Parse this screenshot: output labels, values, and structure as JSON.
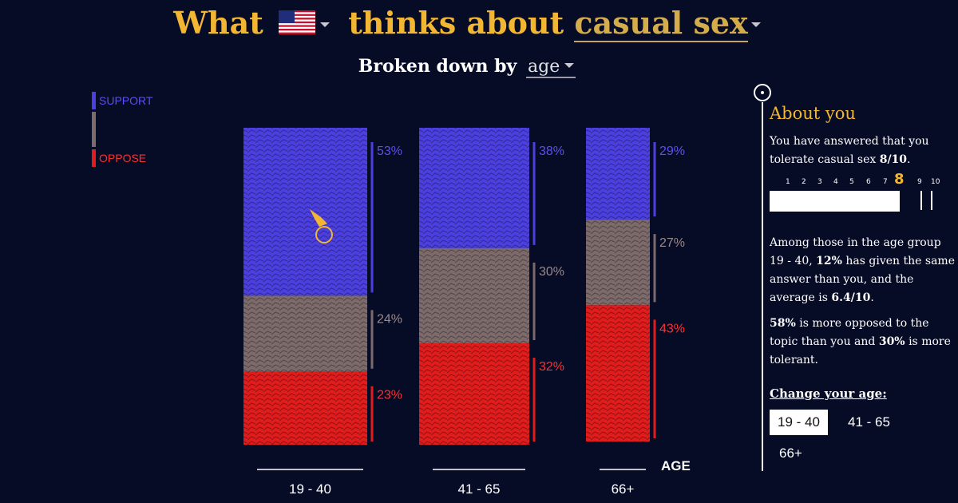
{
  "header": {
    "title_prefix": "What",
    "country_flag": "us-flag-icon",
    "topic": "casual sex",
    "subtitle_prefix": "Broken down by",
    "breakdown": "age"
  },
  "legend": {
    "support_label": "SUPPORT",
    "oppose_label": "OPPOSE",
    "colors": {
      "support": "#4b3fe0",
      "neutral": "#7d6a6a",
      "oppose": "#e01c1c"
    }
  },
  "chart_data": {
    "type": "bar",
    "stacked": true,
    "orientation": "vertical",
    "xlabel": "AGE",
    "categories": [
      "19 - 40",
      "41 - 65",
      "66+"
    ],
    "series": [
      {
        "name": "SUPPORT",
        "values": [
          53,
          38,
          29
        ],
        "color": "#4b3fe0"
      },
      {
        "values": [
          24,
          30,
          27
        ],
        "color": "#7d6a6a"
      },
      {
        "name": "OPPOSE",
        "values": [
          23,
          32,
          43
        ],
        "color": "#e01c1c"
      }
    ],
    "labels": [
      [
        "53%",
        "24%",
        "23%"
      ],
      [
        "38%",
        "30%",
        "32%"
      ],
      [
        "29%",
        "27%",
        "43%"
      ]
    ]
  },
  "sidebar": {
    "title": "About you",
    "answer_text_1": "You have answered that you tolerate casual sex ",
    "answer_value": "8/10",
    "answer_text_2": ".",
    "scale": [
      "1",
      "2",
      "3",
      "4",
      "5",
      "6",
      "7",
      "8",
      "9",
      "10"
    ],
    "selected": "8",
    "stat_1a": "Among those in the age group 19 - 40, ",
    "stat_1b": "12%",
    "stat_1c": " has given the same answer than you, and the average is ",
    "stat_1d": "6.4/10",
    "stat_1e": ".",
    "stat_2a": "58%",
    "stat_2b": " is more opposed to the topic than you and ",
    "stat_2c": "30%",
    "stat_2d": " is more tolerant.",
    "change_label": "Change your age:",
    "age_options": [
      "19 - 40",
      "41 - 65",
      "66+"
    ],
    "active_age": "19 - 40"
  }
}
